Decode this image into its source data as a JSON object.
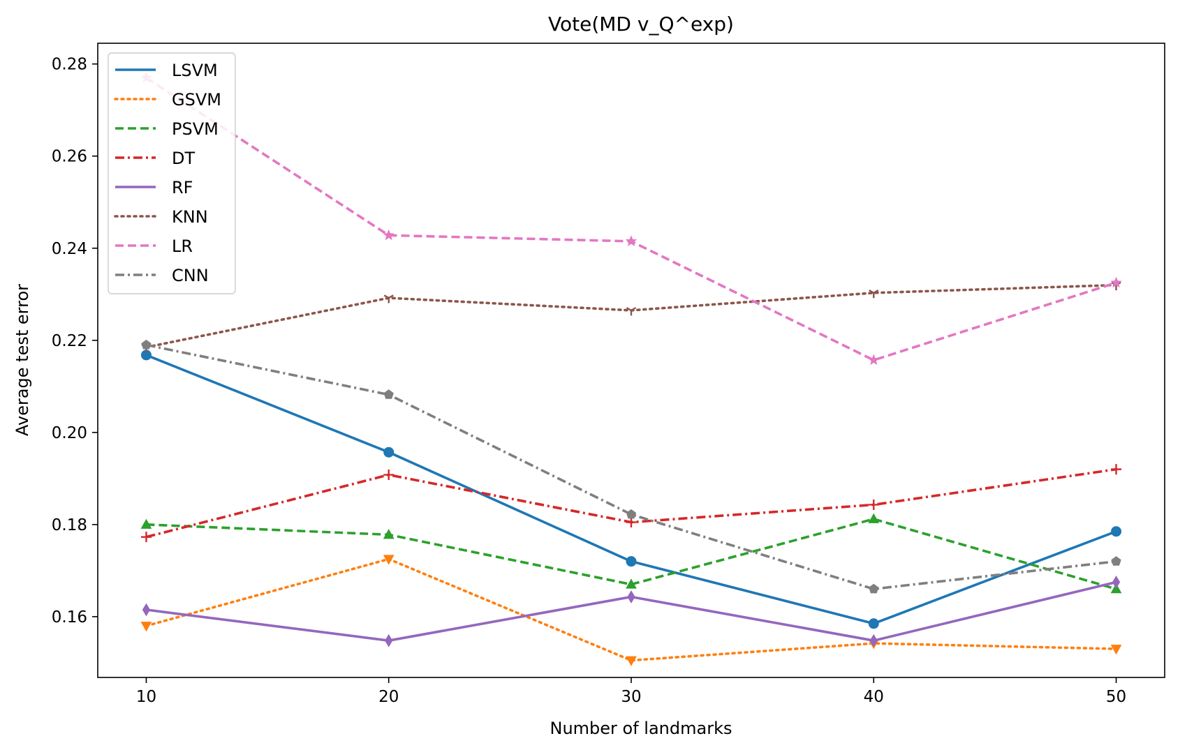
{
  "chart_data": {
    "type": "line",
    "title": "Vote(MD v_Q^exp)",
    "xlabel": "Number of landmarks",
    "ylabel": "Average test error",
    "x": [
      10,
      20,
      30,
      40,
      50
    ],
    "x_ticks": [
      "10",
      "20",
      "30",
      "40",
      "50"
    ],
    "y_ticks": [
      "0.16",
      "0.18",
      "0.20",
      "0.22",
      "0.24",
      "0.26",
      "0.28"
    ],
    "xlim": [
      8,
      52
    ],
    "ylim": [
      0.1468,
      0.2845
    ],
    "grid": false,
    "legend_position": "top-left",
    "series": [
      {
        "name": "LSVM",
        "color": "#1f77b4",
        "dash": "solid",
        "marker": "circle",
        "values": [
          0.2168,
          0.1957,
          0.172,
          0.1585,
          0.1785
        ]
      },
      {
        "name": "GSVM",
        "color": "#ff7f0e",
        "dash": "dotted",
        "marker": "triangle-down",
        "values": [
          0.158,
          0.1725,
          0.1505,
          0.1542,
          0.153
        ]
      },
      {
        "name": "PSVM",
        "color": "#2ca02c",
        "dash": "dashed",
        "marker": "triangle-up",
        "values": [
          0.18,
          0.1778,
          0.167,
          0.1812,
          0.166
        ]
      },
      {
        "name": "DT",
        "color": "#d62728",
        "dash": "dashdot",
        "marker": "plus",
        "values": [
          0.1773,
          0.1908,
          0.1805,
          0.1843,
          0.192
        ]
      },
      {
        "name": "RF",
        "color": "#9467bd",
        "dash": "solid",
        "marker": "diamond",
        "values": [
          0.1615,
          0.1548,
          0.1643,
          0.1548,
          0.1675
        ]
      },
      {
        "name": "KNN",
        "color": "#8c564b",
        "dash": "dotted",
        "marker": "tri-down",
        "values": [
          0.2185,
          0.2292,
          0.2265,
          0.2303,
          0.232
        ]
      },
      {
        "name": "LR",
        "color": "#e377c2",
        "dash": "dashed",
        "marker": "star",
        "values": [
          0.277,
          0.2428,
          0.2415,
          0.2157,
          0.2325
        ]
      },
      {
        "name": "CNN",
        "color": "#7f7f7f",
        "dash": "dashdot",
        "marker": "pentagon",
        "values": [
          0.219,
          0.2082,
          0.1822,
          0.166,
          0.172
        ]
      }
    ]
  }
}
